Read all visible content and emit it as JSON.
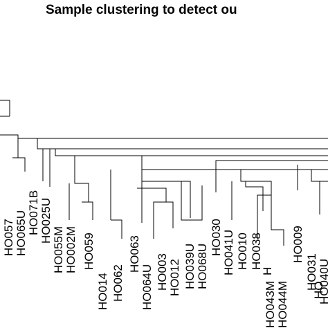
{
  "title": "Sample clustering to detect ou",
  "leaves": [
    "HO057",
    "HO065U",
    "HO071B",
    "HO025U",
    "HO055M",
    "HO002M",
    "HO059",
    "HO014",
    "HO062",
    "HO063",
    "HO064U",
    "HO003",
    "HO012",
    "HO039U",
    "HO068U",
    "HO030",
    "HO041U",
    "HO010",
    "HO038",
    "H",
    "HO043M",
    "HO044M",
    "HO009",
    "HO031",
    "HO",
    "HO040U"
  ]
}
